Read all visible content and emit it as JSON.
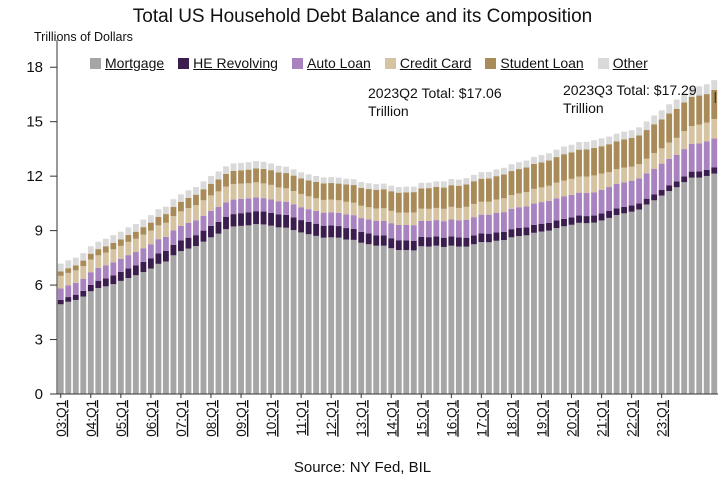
{
  "title": "Total US Household Debt Balance and its Composition",
  "unit_label": "Trillions of Dollars",
  "source": "Source: NY Fed, BIL",
  "legend": [
    {
      "name": "Mortgage",
      "color": "#a6a6a6"
    },
    {
      "name": "HE Revolving",
      "color": "#3b1e4e"
    },
    {
      "name": "Auto Loan",
      "color": "#a883c0"
    },
    {
      "name": "Credit Card",
      "color": "#d5c3a1"
    },
    {
      "name": "Student Loan",
      "color": "#a88b58"
    },
    {
      "name": "Other",
      "color": "#d9d9d9"
    }
  ],
  "annotations": {
    "q2": "2023Q2 Total: $17.06 Trillion",
    "q3": "2023Q3 Total: $17.29 Trillion"
  },
  "chart_data": {
    "type": "bar",
    "stacked": true,
    "x_tick_labels": [
      "03:Q1",
      "04:Q1",
      "05:Q1",
      "06:Q1",
      "07:Q1",
      "08:Q1",
      "09:Q1",
      "10:Q1",
      "11:Q1",
      "12:Q1",
      "13:Q1",
      "14:Q1",
      "15:Q1",
      "16:Q1",
      "17:Q1",
      "18:Q1",
      "19:Q1",
      "20:Q1",
      "21:Q1",
      "22:Q1",
      "23:Q1"
    ],
    "y_ticks": [
      0,
      3,
      6,
      9,
      12,
      15,
      18
    ],
    "ylim": [
      0,
      19.5
    ],
    "grid": false,
    "legend_position": "top",
    "series": [
      {
        "name": "Mortgage",
        "color": "#a6a6a6",
        "values": [
          4.94,
          5.08,
          5.18,
          5.37,
          5.66,
          5.84,
          5.93,
          6.05,
          6.23,
          6.39,
          6.54,
          6.72,
          6.91,
          7.17,
          7.3,
          7.64,
          7.87,
          8.01,
          8.15,
          8.39,
          8.63,
          8.83,
          9.08,
          9.23,
          9.26,
          9.29,
          9.36,
          9.34,
          9.27,
          9.18,
          9.16,
          9.03,
          8.9,
          8.8,
          8.71,
          8.61,
          8.63,
          8.61,
          8.51,
          8.49,
          8.33,
          8.25,
          8.17,
          8.17,
          8.03,
          7.93,
          7.93,
          7.91,
          8.14,
          8.12,
          8.17,
          8.1,
          8.17,
          8.12,
          8.12,
          8.25,
          8.37,
          8.36,
          8.44,
          8.48,
          8.63,
          8.7,
          8.74,
          8.88,
          8.95,
          9.0,
          9.14,
          9.24,
          9.32,
          9.43,
          9.41,
          9.44,
          9.56,
          9.7,
          9.86,
          9.95,
          10.04,
          10.16,
          10.44,
          10.67,
          10.93,
          11.18,
          11.39,
          11.67,
          11.92,
          11.92,
          12.01,
          12.14
        ]
      },
      {
        "name": "HE Revolving",
        "color": "#3b1e4e",
        "values": [
          0.24,
          0.26,
          0.29,
          0.31,
          0.35,
          0.4,
          0.44,
          0.48,
          0.5,
          0.53,
          0.54,
          0.56,
          0.57,
          0.58,
          0.58,
          0.58,
          0.59,
          0.6,
          0.6,
          0.61,
          0.63,
          0.65,
          0.67,
          0.68,
          0.7,
          0.71,
          0.71,
          0.71,
          0.71,
          0.71,
          0.71,
          0.7,
          0.68,
          0.68,
          0.67,
          0.66,
          0.65,
          0.64,
          0.63,
          0.61,
          0.6,
          0.59,
          0.57,
          0.56,
          0.55,
          0.54,
          0.53,
          0.53,
          0.52,
          0.52,
          0.51,
          0.51,
          0.51,
          0.5,
          0.49,
          0.49,
          0.48,
          0.47,
          0.46,
          0.45,
          0.45,
          0.45,
          0.44,
          0.44,
          0.43,
          0.42,
          0.42,
          0.41,
          0.41,
          0.4,
          0.39,
          0.39,
          0.39,
          0.38,
          0.37,
          0.36,
          0.35,
          0.34,
          0.32,
          0.32,
          0.32,
          0.32,
          0.32,
          0.32,
          0.33,
          0.34,
          0.34,
          0.35
        ]
      },
      {
        "name": "Auto Loan",
        "color": "#a883c0",
        "values": [
          0.64,
          0.64,
          0.65,
          0.67,
          0.7,
          0.7,
          0.71,
          0.72,
          0.72,
          0.73,
          0.74,
          0.75,
          0.77,
          0.78,
          0.78,
          0.79,
          0.8,
          0.81,
          0.82,
          0.82,
          0.82,
          0.82,
          0.81,
          0.8,
          0.79,
          0.78,
          0.76,
          0.74,
          0.74,
          0.73,
          0.72,
          0.71,
          0.71,
          0.7,
          0.71,
          0.72,
          0.73,
          0.73,
          0.75,
          0.75,
          0.76,
          0.77,
          0.79,
          0.8,
          0.83,
          0.84,
          0.85,
          0.86,
          0.87,
          0.89,
          0.9,
          0.91,
          0.93,
          0.95,
          0.99,
          1.0,
          1.03,
          1.05,
          1.07,
          1.09,
          1.12,
          1.14,
          1.16,
          1.17,
          1.19,
          1.21,
          1.22,
          1.23,
          1.24,
          1.26,
          1.27,
          1.28,
          1.3,
          1.32,
          1.34,
          1.35,
          1.36,
          1.37,
          1.4,
          1.42,
          1.44,
          1.46,
          1.47,
          1.5,
          1.52,
          1.55,
          1.56,
          1.58
        ]
      },
      {
        "name": "Credit Card",
        "color": "#d5c3a1",
        "values": [
          0.69,
          0.69,
          0.69,
          0.7,
          0.7,
          0.7,
          0.71,
          0.72,
          0.71,
          0.73,
          0.73,
          0.75,
          0.75,
          0.76,
          0.77,
          0.79,
          0.8,
          0.82,
          0.83,
          0.85,
          0.86,
          0.86,
          0.87,
          0.86,
          0.84,
          0.83,
          0.83,
          0.81,
          0.8,
          0.76,
          0.74,
          0.74,
          0.73,
          0.71,
          0.69,
          0.7,
          0.7,
          0.69,
          0.7,
          0.69,
          0.68,
          0.68,
          0.69,
          0.7,
          0.68,
          0.68,
          0.68,
          0.7,
          0.68,
          0.67,
          0.67,
          0.68,
          0.7,
          0.68,
          0.71,
          0.73,
          0.71,
          0.71,
          0.74,
          0.76,
          0.76,
          0.76,
          0.78,
          0.81,
          0.81,
          0.84,
          0.86,
          0.88,
          0.88,
          0.89,
          0.91,
          0.93,
          0.89,
          0.82,
          0.81,
          0.81,
          0.77,
          0.79,
          0.8,
          0.86,
          0.84,
          0.89,
          0.93,
          0.99,
          0.99,
          1.03,
          1.04,
          1.08
        ]
      },
      {
        "name": "Student Loan",
        "color": "#a88b58",
        "values": [
          0.24,
          0.26,
          0.28,
          0.3,
          0.32,
          0.34,
          0.35,
          0.36,
          0.36,
          0.38,
          0.39,
          0.41,
          0.44,
          0.47,
          0.48,
          0.51,
          0.53,
          0.56,
          0.58,
          0.61,
          0.64,
          0.66,
          0.69,
          0.72,
          0.73,
          0.75,
          0.77,
          0.8,
          0.81,
          0.83,
          0.84,
          0.85,
          0.86,
          0.88,
          0.9,
          0.91,
          0.91,
          0.92,
          0.95,
          0.97,
          0.99,
          1.0,
          1.03,
          1.05,
          1.08,
          1.1,
          1.12,
          1.12,
          1.12,
          1.14,
          1.16,
          1.17,
          1.19,
          1.22,
          1.23,
          1.25,
          1.27,
          1.28,
          1.29,
          1.31,
          1.32,
          1.34,
          1.36,
          1.37,
          1.38,
          1.39,
          1.41,
          1.45,
          1.46,
          1.48,
          1.49,
          1.51,
          1.51,
          1.54,
          1.54,
          1.56,
          1.58,
          1.59,
          1.58,
          1.59,
          1.59,
          1.6,
          1.59,
          1.58,
          1.6,
          1.6,
          1.57,
          1.6
        ]
      },
      {
        "name": "Other",
        "color": "#d9d9d9",
        "values": [
          0.43,
          0.43,
          0.42,
          0.41,
          0.41,
          0.41,
          0.41,
          0.42,
          0.42,
          0.42,
          0.42,
          0.42,
          0.41,
          0.42,
          0.41,
          0.42,
          0.41,
          0.42,
          0.42,
          0.43,
          0.43,
          0.44,
          0.42,
          0.41,
          0.41,
          0.41,
          0.4,
          0.39,
          0.37,
          0.36,
          0.35,
          0.34,
          0.33,
          0.33,
          0.33,
          0.33,
          0.33,
          0.33,
          0.32,
          0.32,
          0.32,
          0.32,
          0.31,
          0.31,
          0.31,
          0.31,
          0.31,
          0.3,
          0.3,
          0.3,
          0.3,
          0.34,
          0.34,
          0.34,
          0.35,
          0.35,
          0.36,
          0.36,
          0.37,
          0.37,
          0.38,
          0.38,
          0.38,
          0.39,
          0.4,
          0.4,
          0.41,
          0.42,
          0.42,
          0.42,
          0.42,
          0.43,
          0.43,
          0.42,
          0.42,
          0.42,
          0.43,
          0.44,
          0.47,
          0.48,
          0.51,
          0.51,
          0.52,
          0.52,
          0.53,
          0.51,
          0.54,
          0.54
        ]
      }
    ]
  }
}
